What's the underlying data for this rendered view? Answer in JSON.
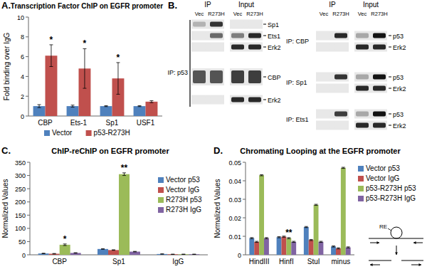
{
  "chart_data": [
    {
      "panel": "A.",
      "type": "bar",
      "title": "Transcription Factor ChIP on EGFR promoter",
      "y_label": "Fold binding over IgG",
      "categories": [
        "CBP",
        "Ets-1",
        "Sp1",
        "USF1"
      ],
      "series": [
        {
          "name": "Vector",
          "color": "#4f81bd",
          "values": [
            1,
            1,
            1,
            1
          ],
          "errors": [
            0.15,
            0.1,
            0.05,
            0.05
          ]
        },
        {
          "name": "p53-R273H",
          "color": "#c0504d",
          "values": [
            6.1,
            4.8,
            3.8,
            1.45
          ],
          "errors": [
            1.1,
            2.0,
            1.6,
            0.1
          ],
          "significance": [
            "*",
            "*",
            "*",
            null
          ]
        }
      ],
      "ylim": [
        0,
        10
      ],
      "yticks": [
        0,
        2,
        4,
        6,
        8,
        10
      ],
      "legend": "bottom"
    },
    {
      "panel": "C.",
      "type": "bar",
      "title": "ChIP-reChIP on EGFR promoter",
      "y_label": "Normalized Values",
      "categories": [
        "CBP",
        "Sp1",
        "IgG"
      ],
      "series": [
        {
          "name": "Vector p53",
          "color": "#4f81bd",
          "values": [
            5,
            22,
            3
          ],
          "errors": [
            1,
            1,
            0.5
          ]
        },
        {
          "name": "Vector IgG",
          "color": "#c0504d",
          "values": [
            4,
            18,
            2
          ],
          "errors": [
            1,
            1,
            0.5
          ]
        },
        {
          "name": "R273H p53",
          "color": "#9bbb59",
          "values": [
            38,
            305,
            2
          ],
          "errors": [
            3,
            5,
            0.5
          ],
          "significance": [
            "*",
            "**",
            null
          ]
        },
        {
          "name": "R273H IgG",
          "color": "#8064a2",
          "values": [
            7,
            12,
            2
          ],
          "errors": [
            1,
            1,
            0.5
          ]
        }
      ],
      "ylim": [
        0,
        350
      ],
      "yticks": [
        0,
        50,
        100,
        150,
        200,
        250,
        300,
        350
      ],
      "legend": "right"
    },
    {
      "panel": "D.",
      "type": "bar",
      "title": "Chromating Looping at the EGFR promoter",
      "y_label": "Normalized Values",
      "categories": [
        "HindIII",
        "HinfI",
        "StuI",
        "minus"
      ],
      "series": [
        {
          "name": "Vector p53",
          "color": "#4f81bd",
          "values": [
            0.009,
            0.0095,
            0.015,
            0.0045
          ],
          "errors": [
            0.0003,
            0.0003,
            0.0003,
            0.0003
          ]
        },
        {
          "name": "Vector IgG",
          "color": "#c0504d",
          "values": [
            0.007,
            0.0098,
            0.008,
            0.0035
          ],
          "errors": [
            0.0003,
            0.0003,
            0.0003,
            0.0003
          ]
        },
        {
          "name": "p53-R273H p53",
          "color": "#9bbb59",
          "values": [
            0.043,
            0.009,
            0.027,
            0.047
          ],
          "errors": [
            0.0003,
            0.0003,
            0.0003,
            0.0003
          ],
          "significance": [
            null,
            "**",
            null,
            null
          ]
        },
        {
          "name": "p53-R273H IgG",
          "color": "#8064a2",
          "values": [
            0.009,
            0.007,
            0.007,
            0.004
          ],
          "errors": [
            0.0003,
            0.0003,
            0.0003,
            0.0003
          ]
        }
      ],
      "ylim": [
        0,
        0.05
      ],
      "yticks": [
        0,
        0.01,
        0.02,
        0.03,
        0.04,
        0.05
      ],
      "legend": "right"
    }
  ],
  "panel_b": {
    "panel": "B.",
    "columns": [
      "IP",
      "Input"
    ],
    "lanes": [
      "Vec",
      "R273H"
    ],
    "blocks": [
      {
        "ip": "IP: p53",
        "rows": [
          {
            "label": "Sp1",
            "signal": [
              0.25,
              0.85,
              0,
              0
            ]
          },
          {
            "label": "Ets1",
            "signal": [
              0,
              0.6,
              0.5,
              0.9
            ]
          },
          {
            "label": "Erk2",
            "signal": [
              0,
              0,
              0.9,
              0.9
            ]
          },
          {
            "label": "CBP",
            "signal": [
              0.7,
              0.7,
              0.8,
              0.8
            ]
          },
          {
            "label": "Erk2",
            "signal": [
              0,
              0,
              0.9,
              0.9
            ]
          }
        ]
      },
      {
        "ip": "IP: CBP",
        "rows": [
          {
            "label": "p53",
            "signal": [
              0,
              0.9,
              0.3,
              1
            ]
          },
          {
            "label": "Erk2",
            "signal": [
              0,
              0,
              0.9,
              0.9
            ]
          }
        ]
      },
      {
        "ip": "IP: Sp1",
        "rows": [
          {
            "label": "p53",
            "signal": [
              0,
              0.85,
              0.3,
              1
            ]
          },
          {
            "label": "Erk2",
            "signal": [
              0,
              0,
              0.9,
              0.9
            ]
          }
        ]
      },
      {
        "ip": "IP: Ets1",
        "rows": [
          {
            "label": "p53",
            "signal": [
              0,
              0.8,
              0.3,
              1
            ]
          },
          {
            "label": "Erk2",
            "signal": [
              0,
              0,
              0.9,
              0.9
            ]
          }
        ]
      }
    ]
  },
  "panel_d_diagram": {
    "label": "RE"
  }
}
